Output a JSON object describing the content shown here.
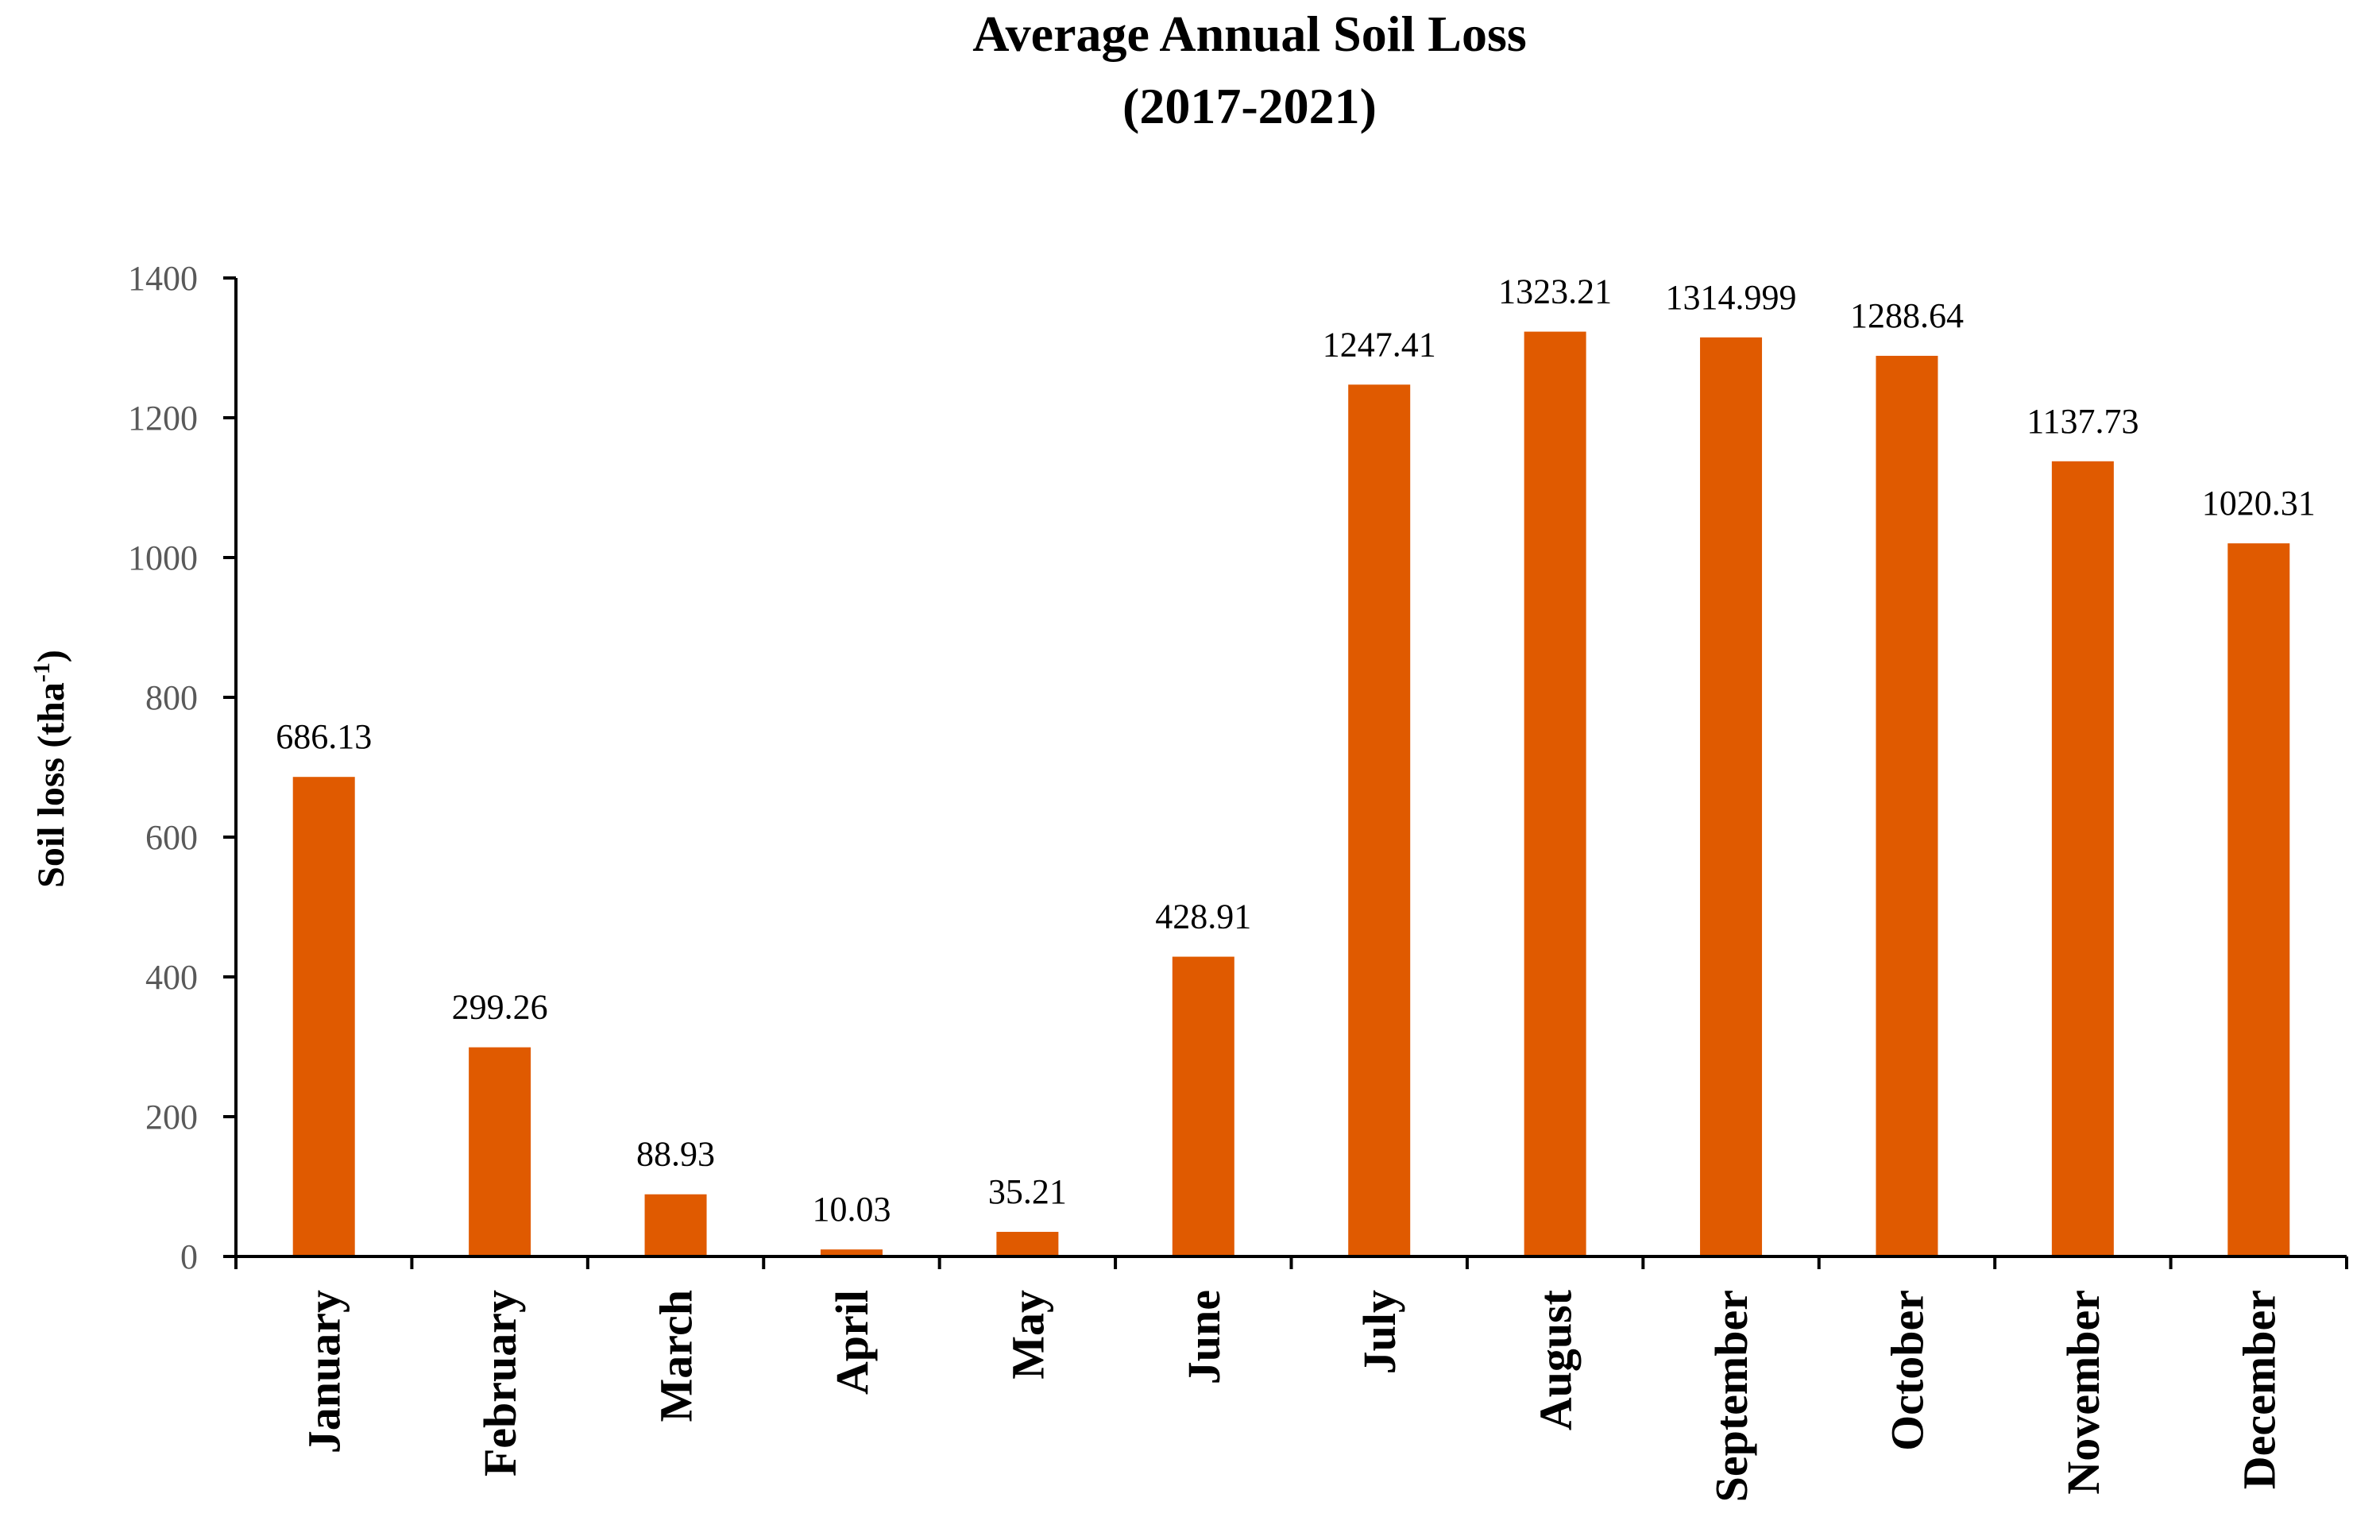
{
  "chart_data": {
    "type": "bar",
    "title": "Average Annual Soil Loss",
    "subtitle": "(2017-2021)",
    "xlabel": "",
    "ylabel": "Soil loss (tha",
    "ylabel_superscript": "-1",
    "ylabel_close": ")",
    "ylim": [
      0,
      1400
    ],
    "yticks": [
      "0",
      "200",
      "400",
      "600",
      "800",
      "1000",
      "1200",
      "1400"
    ],
    "grid": false,
    "bar_color": "#E05A00",
    "categories": [
      "January",
      "February",
      "March",
      "April",
      "May",
      "June",
      "July",
      "August",
      "September",
      "October",
      "November",
      "December"
    ],
    "values": [
      686.13,
      299.26,
      88.93,
      10.03,
      35.21,
      428.91,
      1247.41,
      1323.21,
      1314.999,
      1288.64,
      1137.73,
      1020.31
    ],
    "data_labels": [
      "686.13",
      "299.26",
      "88.93",
      "10.03",
      "35.21",
      "428.91",
      "1247.41",
      "1323.21",
      "1314.999",
      "1288.64",
      "1137.73",
      "1020.31"
    ]
  }
}
